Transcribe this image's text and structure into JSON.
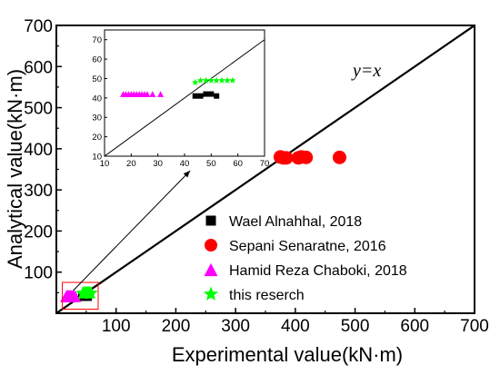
{
  "chart_data": {
    "type": "scatter",
    "xlabel": "Experimental value(kN·m)",
    "ylabel": "Analytical value(kN·m)",
    "xlim": [
      0,
      700
    ],
    "ylim": [
      0,
      700
    ],
    "xticks": [
      "100",
      "200",
      "300",
      "400",
      "500",
      "600",
      "700"
    ],
    "yticks": [
      "100",
      "200",
      "300",
      "400",
      "500",
      "600",
      "700"
    ],
    "reference_line": {
      "label": "y=x",
      "slope": 1,
      "intercept": 0
    },
    "legend": {
      "position": "lower-right"
    },
    "series": [
      {
        "name": "Wael Alnahhal, 2018",
        "marker": "square",
        "color": "#000000",
        "points": [
          [
            44,
            41
          ],
          [
            46,
            41
          ],
          [
            48,
            42
          ],
          [
            50,
            42
          ],
          [
            52,
            41
          ]
        ]
      },
      {
        "name": "Sepani Senaratne, 2016",
        "marker": "circle",
        "color": "#ff0000",
        "points": [
          [
            375,
            380
          ],
          [
            380,
            378
          ],
          [
            385,
            378
          ],
          [
            405,
            378
          ],
          [
            410,
            380
          ],
          [
            418,
            379
          ],
          [
            474,
            379
          ]
        ]
      },
      {
        "name": "Hamid Reza Chaboki, 2018",
        "marker": "triangle",
        "color": "#ff00ff",
        "points": [
          [
            17,
            42
          ],
          [
            18,
            42
          ],
          [
            19,
            42
          ],
          [
            20,
            42
          ],
          [
            21,
            42
          ],
          [
            22,
            42
          ],
          [
            23,
            42
          ],
          [
            24,
            42
          ],
          [
            25,
            42
          ],
          [
            26,
            42
          ],
          [
            28,
            42
          ],
          [
            31,
            42
          ]
        ]
      },
      {
        "name": "this reserch",
        "marker": "star",
        "color": "#00ff00",
        "points": [
          [
            44,
            48
          ],
          [
            46,
            49
          ],
          [
            48,
            49
          ],
          [
            50,
            49
          ],
          [
            52,
            49
          ],
          [
            54,
            49
          ],
          [
            56,
            49
          ],
          [
            58,
            49
          ]
        ]
      }
    ],
    "inset": {
      "xlim": [
        10,
        70
      ],
      "ylim": [
        10,
        75
      ],
      "xticks": [
        "10",
        "20",
        "30",
        "40",
        "50",
        "60",
        "70"
      ],
      "yticks": [
        "10",
        "20",
        "30",
        "40",
        "50",
        "60",
        "70"
      ]
    }
  }
}
